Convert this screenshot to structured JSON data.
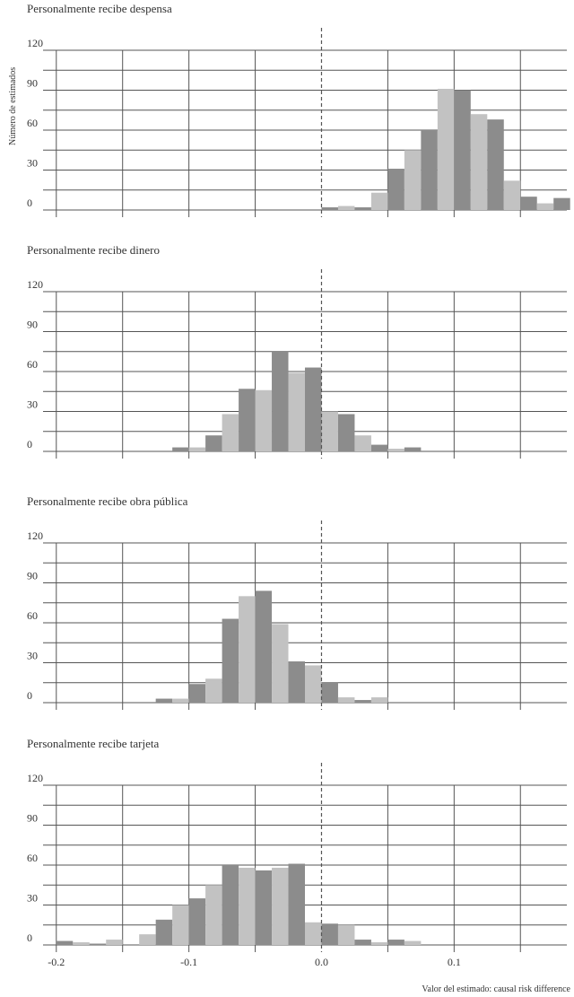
{
  "chart_data": {
    "type": "bar",
    "ylabel": "Número de estimados",
    "xlabel": "Valor del estimado: causal risk difference",
    "ylim": [
      0,
      120
    ],
    "yticks": [
      0,
      30,
      60,
      90,
      120
    ],
    "xlim": [
      -0.21,
      0.185
    ],
    "xticks": [
      -0.2,
      -0.1,
      0.0,
      0.1
    ],
    "xtick_labels": [
      "-0.2",
      "-0.1",
      "0.0",
      "0.1"
    ],
    "reference_line_x": 0.0,
    "bin_width": 0.0125,
    "colors": {
      "dark": "#8c8c8c",
      "light": "#c2c2c2",
      "grid": "#555555",
      "refline": "#555555"
    },
    "panels": [
      {
        "title": "Personalmente recibe despensa",
        "bins": [
          [
            0.0,
            2
          ],
          [
            0.0125,
            3
          ],
          [
            0.025,
            2
          ],
          [
            0.0375,
            13
          ],
          [
            0.05,
            31
          ],
          [
            0.0625,
            45
          ],
          [
            0.075,
            60
          ],
          [
            0.0875,
            91
          ],
          [
            0.1,
            90
          ],
          [
            0.1125,
            72
          ],
          [
            0.125,
            68
          ],
          [
            0.1375,
            22
          ],
          [
            0.15,
            10
          ],
          [
            0.1625,
            5
          ],
          [
            0.175,
            9
          ]
        ]
      },
      {
        "title": "Personalmente recibe dinero",
        "bins": [
          [
            -0.1125,
            3
          ],
          [
            -0.1,
            3
          ],
          [
            -0.0875,
            12
          ],
          [
            -0.075,
            28
          ],
          [
            -0.0625,
            47
          ],
          [
            -0.05,
            46
          ],
          [
            -0.0375,
            75
          ],
          [
            -0.025,
            59
          ],
          [
            -0.0125,
            63
          ],
          [
            0.0,
            30
          ],
          [
            0.0125,
            28
          ],
          [
            0.025,
            12
          ],
          [
            0.0375,
            5
          ],
          [
            0.05,
            2
          ],
          [
            0.0625,
            3
          ]
        ]
      },
      {
        "title": "Personalmente recibe obra pública",
        "bins": [
          [
            -0.125,
            3
          ],
          [
            -0.1125,
            3
          ],
          [
            -0.1,
            14
          ],
          [
            -0.0875,
            18
          ],
          [
            -0.075,
            63
          ],
          [
            -0.0625,
            80
          ],
          [
            -0.05,
            84
          ],
          [
            -0.0375,
            59
          ],
          [
            -0.025,
            31
          ],
          [
            -0.0125,
            28
          ],
          [
            0.0,
            15
          ],
          [
            0.0125,
            4
          ],
          [
            0.025,
            2
          ],
          [
            0.0375,
            4
          ]
        ]
      },
      {
        "title": "Personalmente recibe tarjeta",
        "bins": [
          [
            -0.2,
            3
          ],
          [
            -0.1875,
            2
          ],
          [
            -0.175,
            1
          ],
          [
            -0.1625,
            4
          ],
          [
            -0.15,
            0
          ],
          [
            -0.1375,
            8
          ],
          [
            -0.125,
            19
          ],
          [
            -0.1125,
            30
          ],
          [
            -0.1,
            35
          ],
          [
            -0.0875,
            45
          ],
          [
            -0.075,
            60
          ],
          [
            -0.0625,
            58
          ],
          [
            -0.05,
            56
          ],
          [
            -0.0375,
            58
          ],
          [
            -0.025,
            61
          ],
          [
            -0.0125,
            17
          ],
          [
            0.0,
            16
          ],
          [
            0.0125,
            15
          ],
          [
            0.025,
            4
          ],
          [
            0.0375,
            2
          ],
          [
            0.05,
            4
          ],
          [
            0.0625,
            3
          ]
        ]
      }
    ]
  }
}
